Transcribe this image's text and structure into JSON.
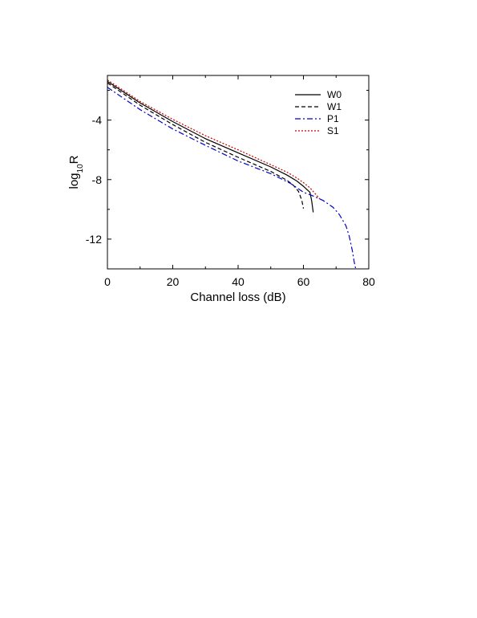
{
  "chart_data": {
    "type": "line",
    "xlabel": "Channel loss (dB)",
    "ylabel": {
      "base": "log",
      "sub": "10",
      "tail": "R"
    },
    "xlim": [
      0,
      80
    ],
    "ylim": [
      -14,
      -1
    ],
    "x_ticks": [
      0,
      20,
      40,
      60,
      80
    ],
    "y_ticks": [
      -4,
      -8,
      -12
    ],
    "grid": false,
    "legend_position": "top-right",
    "series": [
      {
        "name": "W0",
        "color": "#000000",
        "dash": "solid",
        "x": [
          0,
          10,
          20,
          30,
          40,
          50,
          55,
          58,
          60,
          62,
          62.5,
          63
        ],
        "y": [
          -1.4,
          -2.85,
          -4.1,
          -5.25,
          -6.2,
          -7.15,
          -7.7,
          -8.1,
          -8.45,
          -8.85,
          -9.4,
          -10.2
        ]
      },
      {
        "name": "W1",
        "color": "#000000",
        "dash": "dashed",
        "x": [
          0,
          10,
          20,
          30,
          40,
          50,
          55,
          57,
          58.5,
          59.5,
          60
        ],
        "y": [
          -1.5,
          -3.0,
          -4.3,
          -5.5,
          -6.5,
          -7.45,
          -8.05,
          -8.4,
          -8.8,
          -9.4,
          -9.95
        ]
      },
      {
        "name": "P1",
        "color": "#0000cc",
        "dash": "dashdot",
        "x": [
          0,
          10,
          20,
          30,
          40,
          50,
          56,
          60,
          63,
          66,
          69,
          71,
          73,
          74,
          75,
          75.5,
          76
        ],
        "y": [
          -1.8,
          -3.3,
          -4.6,
          -5.7,
          -6.75,
          -7.6,
          -8.25,
          -8.85,
          -9.1,
          -9.4,
          -9.85,
          -10.35,
          -11.1,
          -11.8,
          -12.8,
          -13.5,
          -14.0
        ]
      },
      {
        "name": "S1",
        "color": "#cc0000",
        "dash": "dotted",
        "x": [
          0,
          10,
          20,
          30,
          40,
          50,
          55,
          58,
          60,
          62,
          63,
          64,
          65
        ],
        "y": [
          -1.3,
          -2.75,
          -3.95,
          -5.05,
          -6.0,
          -7.0,
          -7.5,
          -7.9,
          -8.2,
          -8.55,
          -8.8,
          -9.05,
          -9.3
        ]
      }
    ]
  }
}
